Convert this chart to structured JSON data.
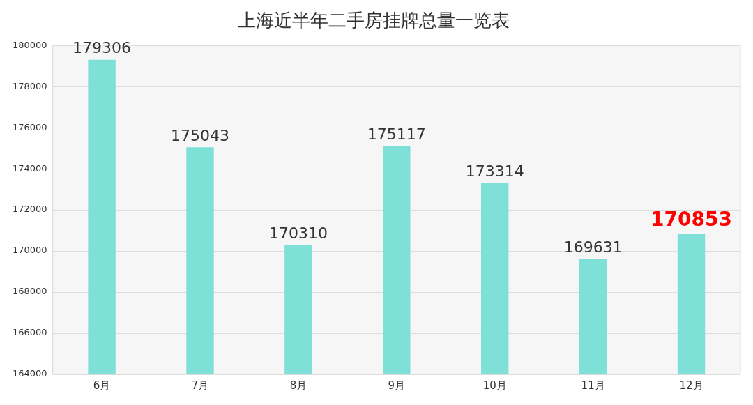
{
  "chart_data": {
    "type": "bar",
    "title": "上海近半年二手房挂牌总量一览表",
    "categories": [
      "6月",
      "7月",
      "8月",
      "9月",
      "10月",
      "11月",
      "12月"
    ],
    "values": [
      179306,
      175043,
      170310,
      175117,
      173314,
      169631,
      170853
    ],
    "value_labels": [
      "179306",
      "175043",
      "170310",
      "175117",
      "173314",
      "169631",
      null
    ],
    "annotations": [
      {
        "text": "170853",
        "x": "12月",
        "y": 170853
      }
    ],
    "color": "#7fe0d8",
    "ylim": [
      164000,
      180000
    ],
    "yticks": [
      164000,
      166000,
      168000,
      170000,
      172000,
      174000,
      176000,
      178000,
      180000
    ],
    "grid": "y"
  }
}
